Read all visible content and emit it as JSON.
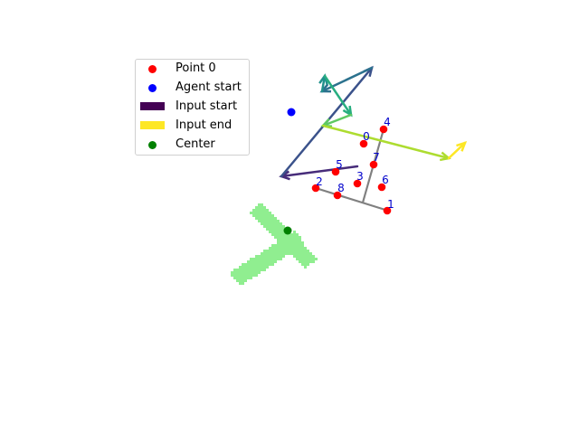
{
  "diagram": {
    "legend": [
      {
        "label": "Point 0",
        "color": "#ff0000",
        "kind": "dot"
      },
      {
        "label": "Agent start",
        "color": "#0000ff",
        "kind": "dot"
      },
      {
        "label": "Input start",
        "color": "#440154",
        "kind": "rect"
      },
      {
        "label": "Input end",
        "color": "#fde725",
        "kind": "rect"
      },
      {
        "label": "Center",
        "color": "#008000",
        "kind": "dot"
      }
    ],
    "point_labels": [
      "0",
      "1",
      "2",
      "3",
      "4",
      "5",
      "6",
      "7",
      "8"
    ],
    "colors": {
      "point": "#ff0000",
      "agent": "#0000ff",
      "center": "#008000",
      "skeleton": "#808080",
      "shape": "#90ee90",
      "label": "#0000cc"
    }
  }
}
